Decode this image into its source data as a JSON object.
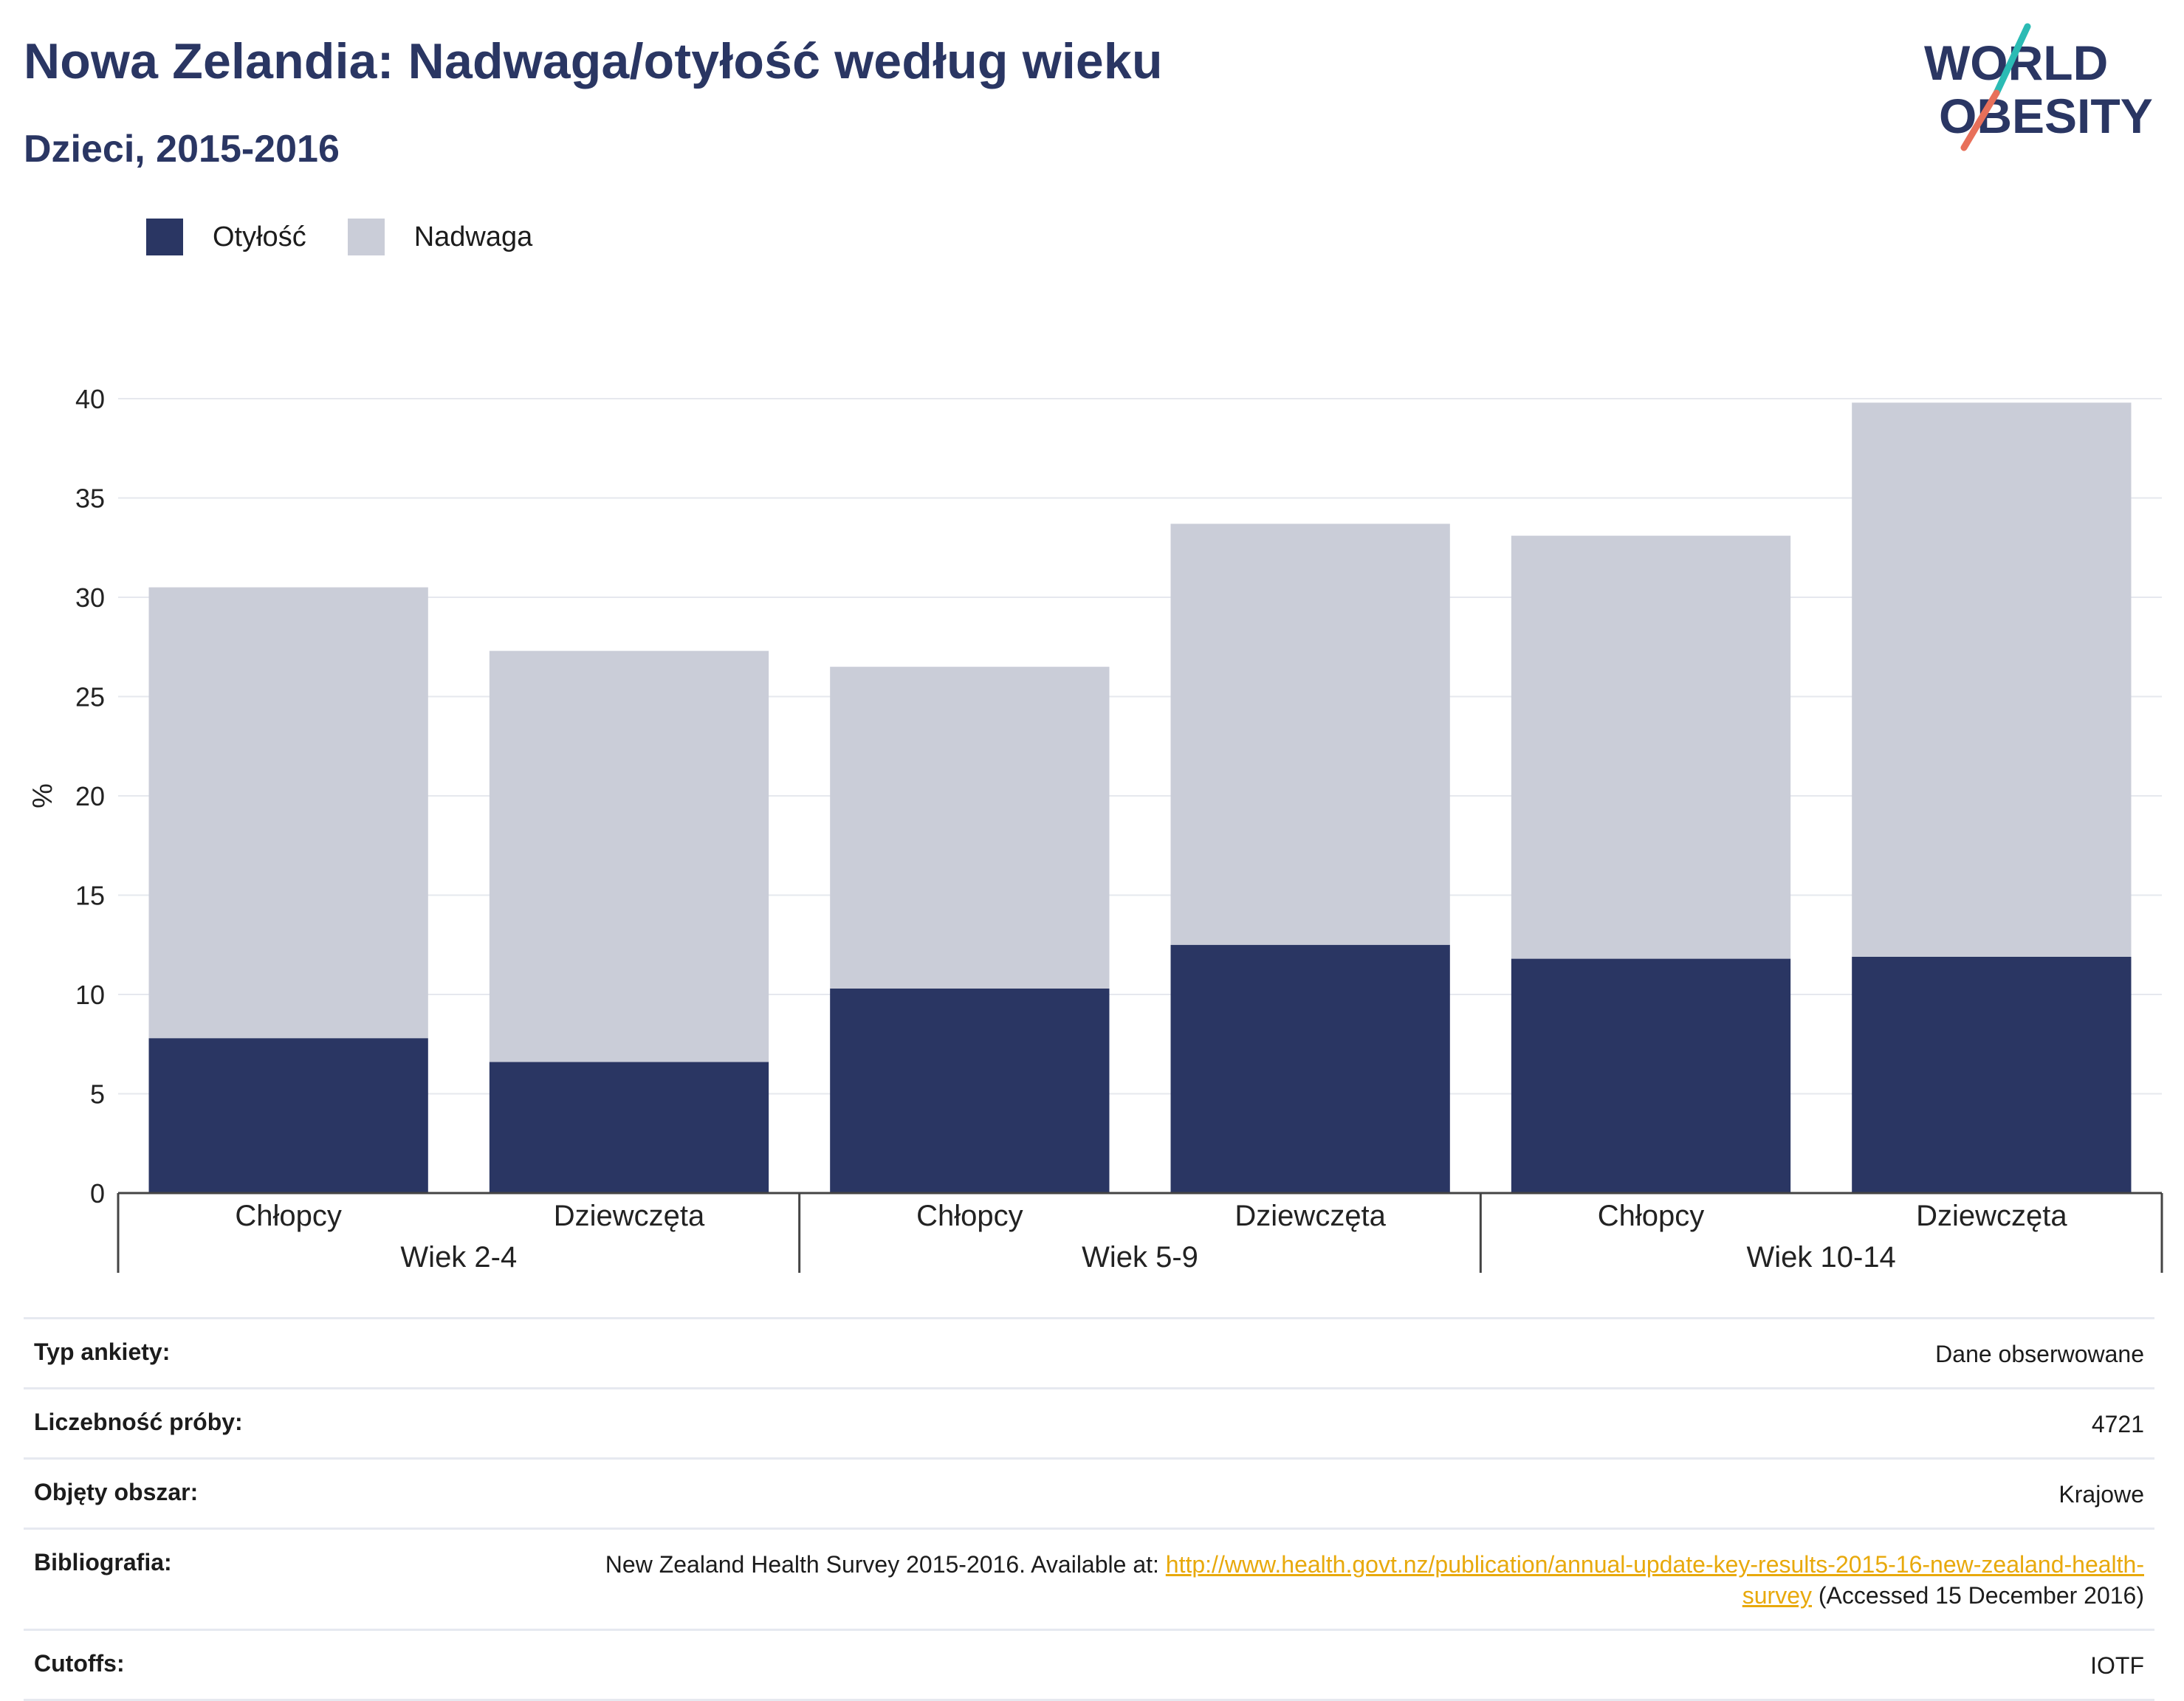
{
  "header": {
    "title": "Nowa Zelandia: Nadwaga/otyłość według wieku",
    "subtitle": "Dzieci, 2015-2016"
  },
  "logo": {
    "line1": "WORLD",
    "line2": "OBESITY",
    "slash_top_color": "#2bbbb4",
    "slash_bottom_color": "#e8705a"
  },
  "legend": [
    {
      "label": "Otyłość",
      "color": "#2a3663"
    },
    {
      "label": "Nadwaga",
      "color": "#cacdd8"
    }
  ],
  "chart_data": {
    "type": "bar",
    "stacked": true,
    "ylabel": "%",
    "ylim": [
      0,
      40
    ],
    "yticks": [
      0,
      5,
      10,
      15,
      20,
      25,
      30,
      35,
      40
    ],
    "grid": true,
    "legend_position": "top-left",
    "groups": [
      "Wiek 2-4",
      "Wiek 5-9",
      "Wiek 10-14"
    ],
    "categories": [
      "Chłopcy",
      "Dziewczęta",
      "Chłopcy",
      "Dziewczęta",
      "Chłopcy",
      "Dziewczęta"
    ],
    "series": [
      {
        "name": "Otyłość",
        "color": "#2a3663",
        "values": [
          7.8,
          6.6,
          10.3,
          12.5,
          11.8,
          11.9
        ]
      },
      {
        "name": "Nadwaga",
        "color": "#cacdd8",
        "values": [
          22.7,
          20.7,
          16.2,
          21.2,
          21.3,
          27.9
        ]
      }
    ]
  },
  "meta": {
    "survey_type": {
      "label": "Typ ankiety:",
      "value": "Dane obserwowane"
    },
    "sample_size": {
      "label": "Liczebność próby:",
      "value": "4721"
    },
    "area": {
      "label": "Objęty obszar:",
      "value": "Krajowe"
    },
    "bibliography": {
      "label": "Bibliografia:",
      "text_before": "New Zealand Health Survey 2015-2016. Available at: ",
      "link": "http://www.health.govt.nz/publication/annual-update-key-results-2015-16-new-zealand-health-survey",
      "text_after": " (Accessed 15 December 2016)"
    },
    "cutoffs": {
      "label": "Cutoffs:",
      "value": "IOTF"
    }
  }
}
